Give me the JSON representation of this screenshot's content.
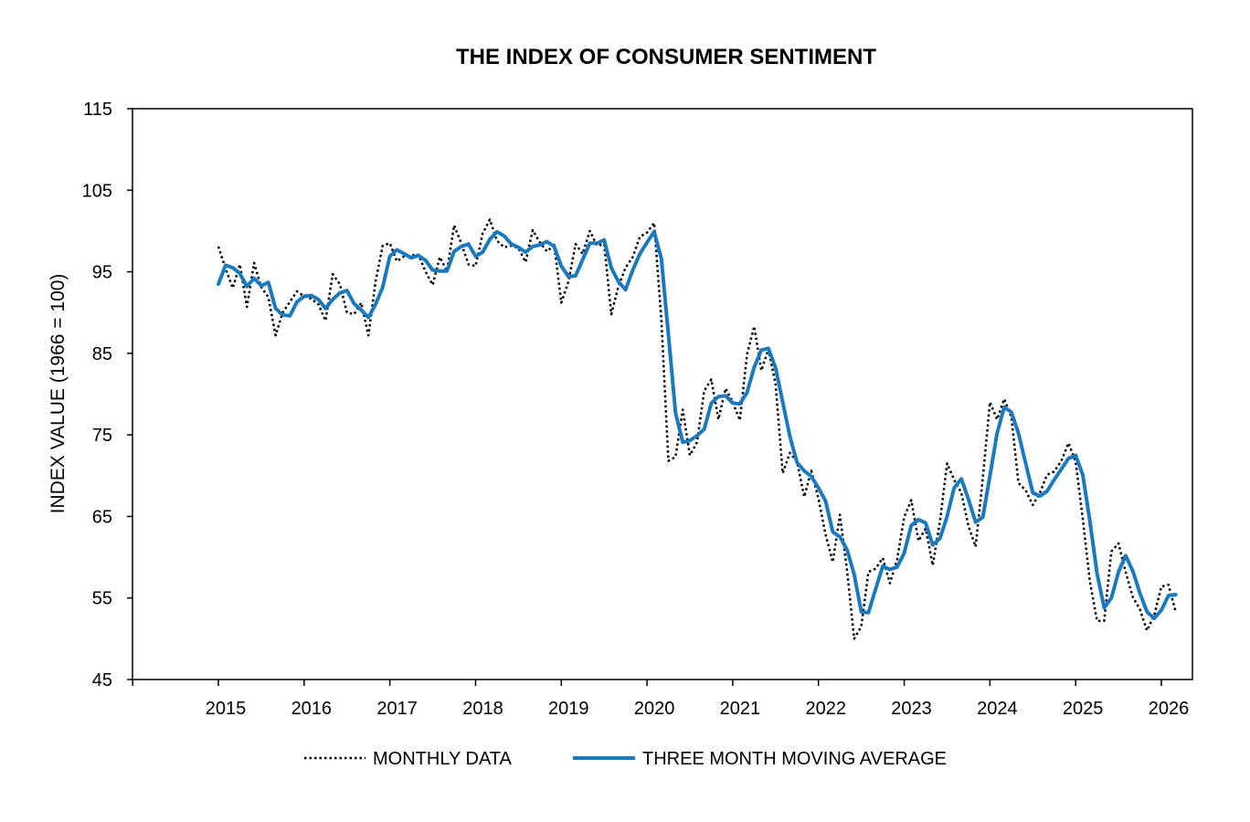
{
  "chart_data": {
    "type": "line",
    "title": "THE INDEX OF CONSUMER SENTIMENT",
    "xlabel": "",
    "ylabel": "INDEX VALUE (1966 = 100)",
    "xlim": [
      2014,
      2026.4
    ],
    "ylim": [
      45,
      115
    ],
    "yticks": [
      45,
      55,
      65,
      75,
      85,
      95,
      105,
      115
    ],
    "xticks": [
      2015,
      2016,
      2017,
      2018,
      2019,
      2020,
      2021,
      2022,
      2023,
      2024,
      2025,
      2026
    ],
    "grid": false,
    "legend_position": "bottom",
    "series": [
      {
        "name": "MONTHLY DATA",
        "style": "dotted",
        "color": "#000000",
        "x": [
          2015.0,
          2015.083,
          2015.167,
          2015.25,
          2015.333,
          2015.417,
          2015.5,
          2015.583,
          2015.667,
          2015.75,
          2015.833,
          2015.917,
          2016.0,
          2016.083,
          2016.167,
          2016.25,
          2016.333,
          2016.417,
          2016.5,
          2016.583,
          2016.667,
          2016.75,
          2016.833,
          2016.917,
          2017.0,
          2017.083,
          2017.167,
          2017.25,
          2017.333,
          2017.417,
          2017.5,
          2017.583,
          2017.667,
          2017.75,
          2017.833,
          2017.917,
          2018.0,
          2018.083,
          2018.167,
          2018.25,
          2018.333,
          2018.417,
          2018.5,
          2018.583,
          2018.667,
          2018.75,
          2018.833,
          2018.917,
          2019.0,
          2019.083,
          2019.167,
          2019.25,
          2019.333,
          2019.417,
          2019.5,
          2019.583,
          2019.667,
          2019.75,
          2019.833,
          2019.917,
          2020.0,
          2020.083,
          2020.167,
          2020.25,
          2020.333,
          2020.417,
          2020.5,
          2020.583,
          2020.667,
          2020.75,
          2020.833,
          2020.917,
          2021.0,
          2021.083,
          2021.167,
          2021.25,
          2021.333,
          2021.417,
          2021.5,
          2021.583,
          2021.667,
          2021.75,
          2021.833,
          2021.917,
          2022.0,
          2022.083,
          2022.167,
          2022.25,
          2022.333,
          2022.417,
          2022.5,
          2022.583,
          2022.667,
          2022.75,
          2022.833,
          2022.917,
          2023.0,
          2023.083,
          2023.167,
          2023.25,
          2023.333,
          2023.417,
          2023.5,
          2023.583,
          2023.667,
          2023.75,
          2023.833,
          2023.917,
          2024.0,
          2024.083,
          2024.167,
          2024.25,
          2024.333,
          2024.417,
          2024.5,
          2024.583,
          2024.667,
          2024.75,
          2024.833,
          2024.917,
          2025.0,
          2025.083,
          2025.167,
          2025.25,
          2025.333,
          2025.417,
          2025.5,
          2025.583,
          2025.667,
          2025.75,
          2025.833,
          2025.917,
          2026.0,
          2026.083,
          2026.167
        ],
        "values": [
          98.1,
          95.4,
          93.0,
          95.9,
          90.7,
          96.1,
          93.1,
          91.9,
          87.2,
          90.0,
          91.3,
          92.6,
          92.0,
          91.7,
          91.0,
          89.0,
          94.7,
          93.5,
          90.0,
          89.8,
          91.2,
          87.2,
          93.8,
          98.2,
          98.5,
          96.3,
          96.9,
          97.0,
          97.1,
          95.0,
          93.4,
          96.8,
          95.1,
          100.7,
          98.5,
          95.9,
          95.7,
          99.7,
          101.4,
          98.8,
          98.0,
          98.2,
          97.9,
          96.2,
          100.1,
          98.6,
          97.5,
          98.3,
          91.2,
          93.8,
          98.4,
          97.2,
          100.0,
          98.2,
          98.4,
          89.8,
          93.2,
          95.5,
          96.8,
          99.3,
          99.8,
          101.0,
          89.1,
          71.8,
          72.3,
          78.1,
          72.5,
          74.1,
          80.4,
          81.8,
          76.9,
          80.7,
          79.0,
          76.8,
          84.9,
          88.3,
          82.9,
          85.5,
          81.2,
          70.3,
          72.8,
          71.7,
          67.4,
          70.6,
          67.2,
          62.8,
          59.4,
          65.2,
          58.4,
          50.0,
          51.5,
          58.2,
          58.6,
          59.9,
          56.8,
          59.7,
          64.9,
          67.0,
          62.0,
          63.5,
          59.0,
          64.4,
          71.5,
          69.5,
          67.9,
          63.8,
          61.3,
          69.7,
          79.0,
          76.9,
          79.4,
          77.2,
          69.1,
          68.2,
          66.4,
          67.9,
          70.1,
          70.5,
          71.8,
          74.0,
          71.7,
          64.7,
          57.0,
          52.2,
          52.2,
          60.7,
          61.7,
          58.2,
          55.1,
          53.6,
          51.0,
          52.9,
          56.4,
          56.6,
          53.3
        ]
      },
      {
        "name": "THREE MONTH MOVING AVERAGE",
        "style": "solid",
        "color": "#1a7abf",
        "x": [
          2015.0,
          2015.083,
          2015.167,
          2015.25,
          2015.333,
          2015.417,
          2015.5,
          2015.583,
          2015.667,
          2015.75,
          2015.833,
          2015.917,
          2016.0,
          2016.083,
          2016.167,
          2016.25,
          2016.333,
          2016.417,
          2016.5,
          2016.583,
          2016.667,
          2016.75,
          2016.833,
          2016.917,
          2017.0,
          2017.083,
          2017.167,
          2017.25,
          2017.333,
          2017.417,
          2017.5,
          2017.583,
          2017.667,
          2017.75,
          2017.833,
          2017.917,
          2018.0,
          2018.083,
          2018.167,
          2018.25,
          2018.333,
          2018.417,
          2018.5,
          2018.583,
          2018.667,
          2018.75,
          2018.833,
          2018.917,
          2019.0,
          2019.083,
          2019.167,
          2019.25,
          2019.333,
          2019.417,
          2019.5,
          2019.583,
          2019.667,
          2019.75,
          2019.833,
          2019.917,
          2020.0,
          2020.083,
          2020.167,
          2020.25,
          2020.333,
          2020.417,
          2020.5,
          2020.583,
          2020.667,
          2020.75,
          2020.833,
          2020.917,
          2021.0,
          2021.083,
          2021.167,
          2021.25,
          2021.333,
          2021.417,
          2021.5,
          2021.583,
          2021.667,
          2021.75,
          2021.833,
          2021.917,
          2022.0,
          2022.083,
          2022.167,
          2022.25,
          2022.333,
          2022.417,
          2022.5,
          2022.583,
          2022.667,
          2022.75,
          2022.833,
          2022.917,
          2023.0,
          2023.083,
          2023.167,
          2023.25,
          2023.333,
          2023.417,
          2023.5,
          2023.583,
          2023.667,
          2023.75,
          2023.833,
          2023.917,
          2024.0,
          2024.083,
          2024.167,
          2024.25,
          2024.333,
          2024.417,
          2024.5,
          2024.583,
          2024.667,
          2024.75,
          2024.833,
          2024.917,
          2025.0,
          2025.083,
          2025.167,
          2025.25,
          2025.333,
          2025.417,
          2025.5,
          2025.583,
          2025.667,
          2025.75,
          2025.833,
          2025.917,
          2026.0,
          2026.083,
          2026.167
        ],
        "values": [
          93.5,
          95.8,
          95.5,
          94.8,
          93.2,
          94.2,
          93.3,
          93.7,
          90.5,
          89.7,
          89.6,
          91.3,
          92.0,
          92.1,
          91.6,
          90.5,
          91.6,
          92.4,
          92.7,
          91.1,
          90.3,
          89.4,
          91.0,
          93.1,
          96.9,
          97.7,
          97.2,
          96.7,
          97.0,
          96.4,
          95.2,
          95.1,
          95.1,
          97.5,
          98.1,
          98.4,
          96.9,
          97.4,
          99.0,
          99.9,
          99.4,
          98.4,
          98.0,
          97.4,
          98.1,
          98.3,
          98.7,
          98.1,
          95.7,
          94.4,
          94.5,
          96.5,
          98.5,
          98.5,
          98.9,
          95.5,
          93.8,
          92.8,
          95.2,
          97.2,
          98.6,
          99.9,
          96.6,
          87.3,
          77.7,
          74.1,
          74.3,
          74.9,
          75.7,
          78.9,
          79.7,
          79.8,
          78.9,
          78.8,
          80.2,
          83.3,
          85.4,
          85.6,
          83.2,
          79.0,
          74.8,
          71.6,
          70.6,
          69.9,
          68.5,
          66.9,
          63.1,
          62.5,
          60.9,
          57.9,
          53.3,
          53.2,
          56.1,
          58.9,
          58.5,
          58.8,
          60.5,
          63.9,
          64.6,
          64.2,
          61.5,
          62.3,
          65.0,
          68.5,
          69.6,
          67.1,
          64.3,
          64.9,
          70.0,
          75.2,
          78.4,
          77.8,
          75.2,
          71.5,
          67.9,
          67.5,
          68.1,
          69.5,
          70.8,
          72.1,
          72.5,
          70.1,
          64.4,
          58.0,
          53.8,
          55.0,
          58.2,
          60.2,
          58.3,
          55.6,
          53.3,
          52.5,
          53.5,
          55.3,
          55.4
        ]
      }
    ]
  }
}
